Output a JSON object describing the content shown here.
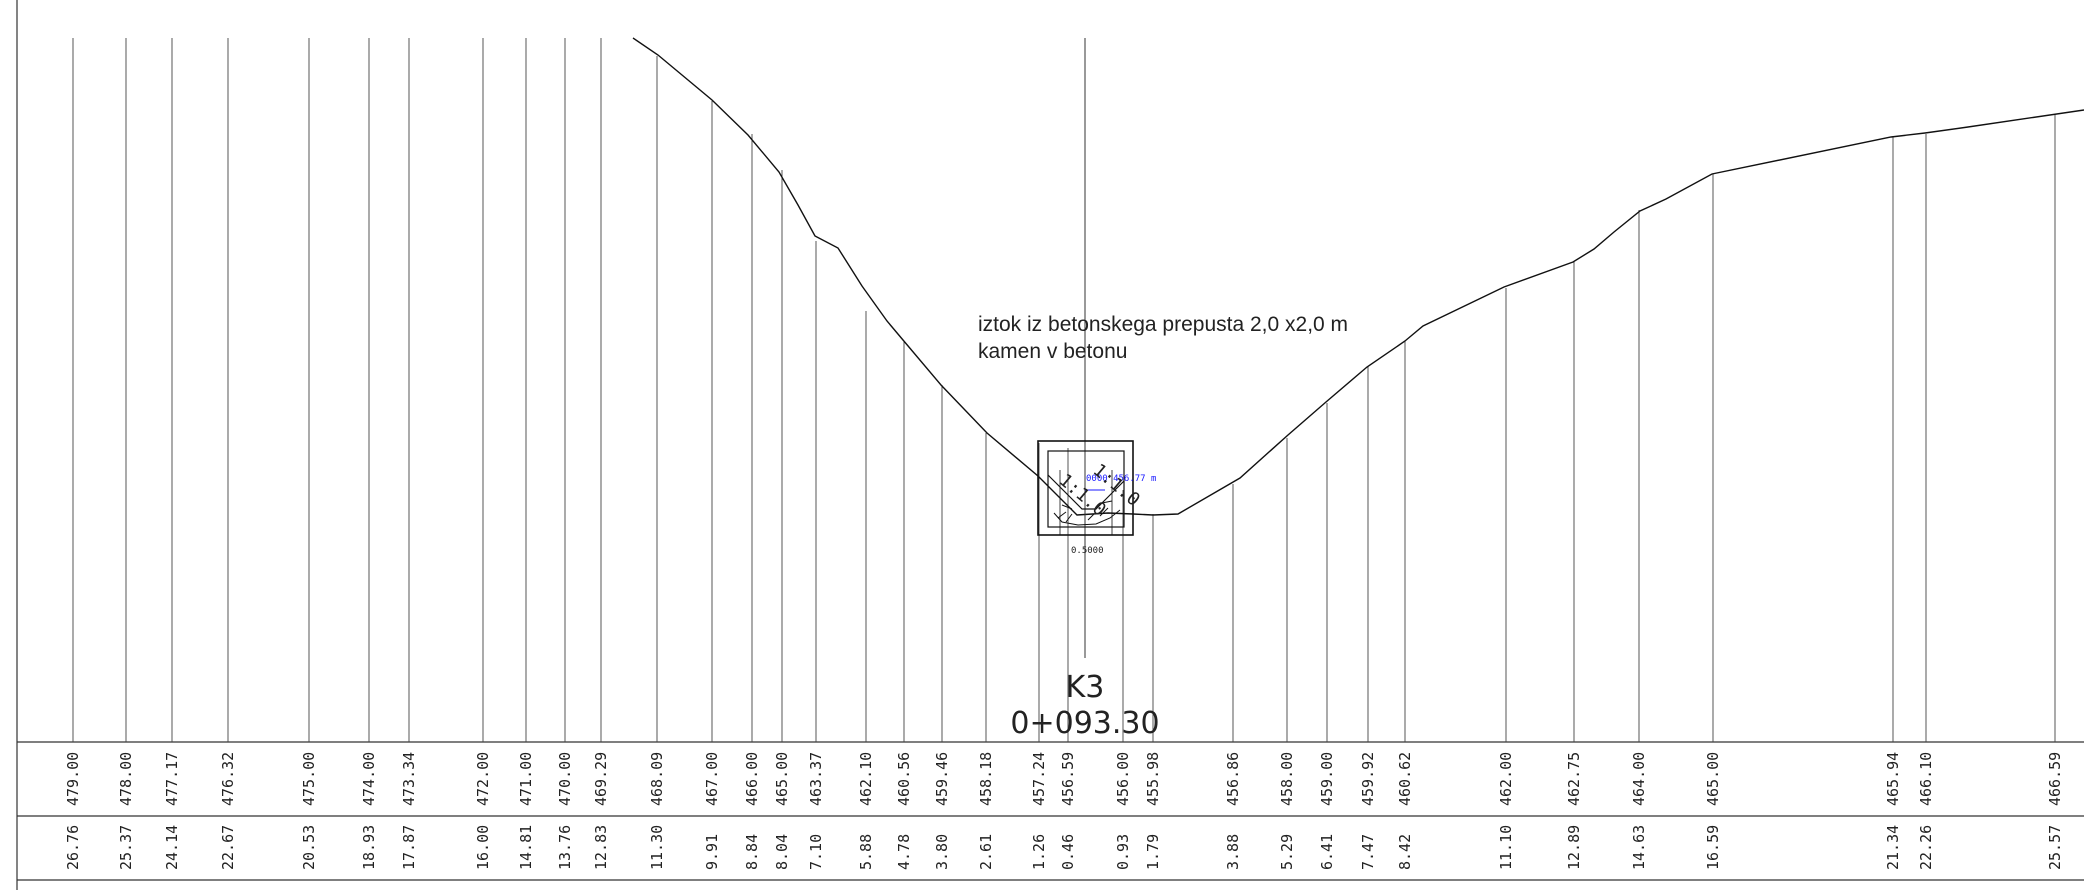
{
  "annotation": {
    "line1": "iztok iz betonskega  prepusta 2,0 x2,0 m",
    "line2": "kamen v betonu"
  },
  "station": {
    "name": "K3",
    "chainage": "0+093.30"
  },
  "culvert_labels": {
    "elevation_tag": "0000 456.77 m",
    "width_label": "0.5000",
    "slope_left": "1:1.0",
    "slope_right": "1:1.0"
  },
  "profile_points": [
    {
      "elevation": "479.00",
      "distance": "26.76"
    },
    {
      "elevation": "478.00",
      "distance": "25.37"
    },
    {
      "elevation": "477.17",
      "distance": "24.14"
    },
    {
      "elevation": "476.32",
      "distance": "22.67"
    },
    {
      "elevation": "475.00",
      "distance": "20.53"
    },
    {
      "elevation": "474.00",
      "distance": "18.93"
    },
    {
      "elevation": "473.34",
      "distance": "17.87"
    },
    {
      "elevation": "472.00",
      "distance": "16.00"
    },
    {
      "elevation": "471.00",
      "distance": "14.81"
    },
    {
      "elevation": "470.00",
      "distance": "13.76"
    },
    {
      "elevation": "469.29",
      "distance": "12.83"
    },
    {
      "elevation": "468.09",
      "distance": "11.30"
    },
    {
      "elevation": "467.00",
      "distance": "9.91"
    },
    {
      "elevation": "466.00",
      "distance": "8.84"
    },
    {
      "elevation": "465.00",
      "distance": "8.04"
    },
    {
      "elevation": "463.37",
      "distance": "7.10"
    },
    {
      "elevation": "462.10",
      "distance": "5.88"
    },
    {
      "elevation": "460.56",
      "distance": "4.78"
    },
    {
      "elevation": "459.46",
      "distance": "3.80"
    },
    {
      "elevation": "458.18",
      "distance": "2.61"
    },
    {
      "elevation": "457.24",
      "distance": "1.26"
    },
    {
      "elevation": "456.59",
      "distance": "0.46"
    },
    {
      "elevation": "456.00",
      "distance": "0.93"
    },
    {
      "elevation": "455.98",
      "distance": "1.79"
    },
    {
      "elevation": "456.86",
      "distance": "3.88"
    },
    {
      "elevation": "458.00",
      "distance": "5.29"
    },
    {
      "elevation": "459.00",
      "distance": "6.41"
    },
    {
      "elevation": "459.92",
      "distance": "7.47"
    },
    {
      "elevation": "460.62",
      "distance": "8.42"
    },
    {
      "elevation": "462.00",
      "distance": "11.10"
    },
    {
      "elevation": "462.75",
      "distance": "12.89"
    },
    {
      "elevation": "464.00",
      "distance": "14.63"
    },
    {
      "elevation": "465.00",
      "distance": "16.59"
    },
    {
      "elevation": "465.94",
      "distance": "21.34"
    },
    {
      "elevation": "466.10",
      "distance": "22.26"
    },
    {
      "elevation": "466.59",
      "distance": "25.57"
    }
  ]
}
